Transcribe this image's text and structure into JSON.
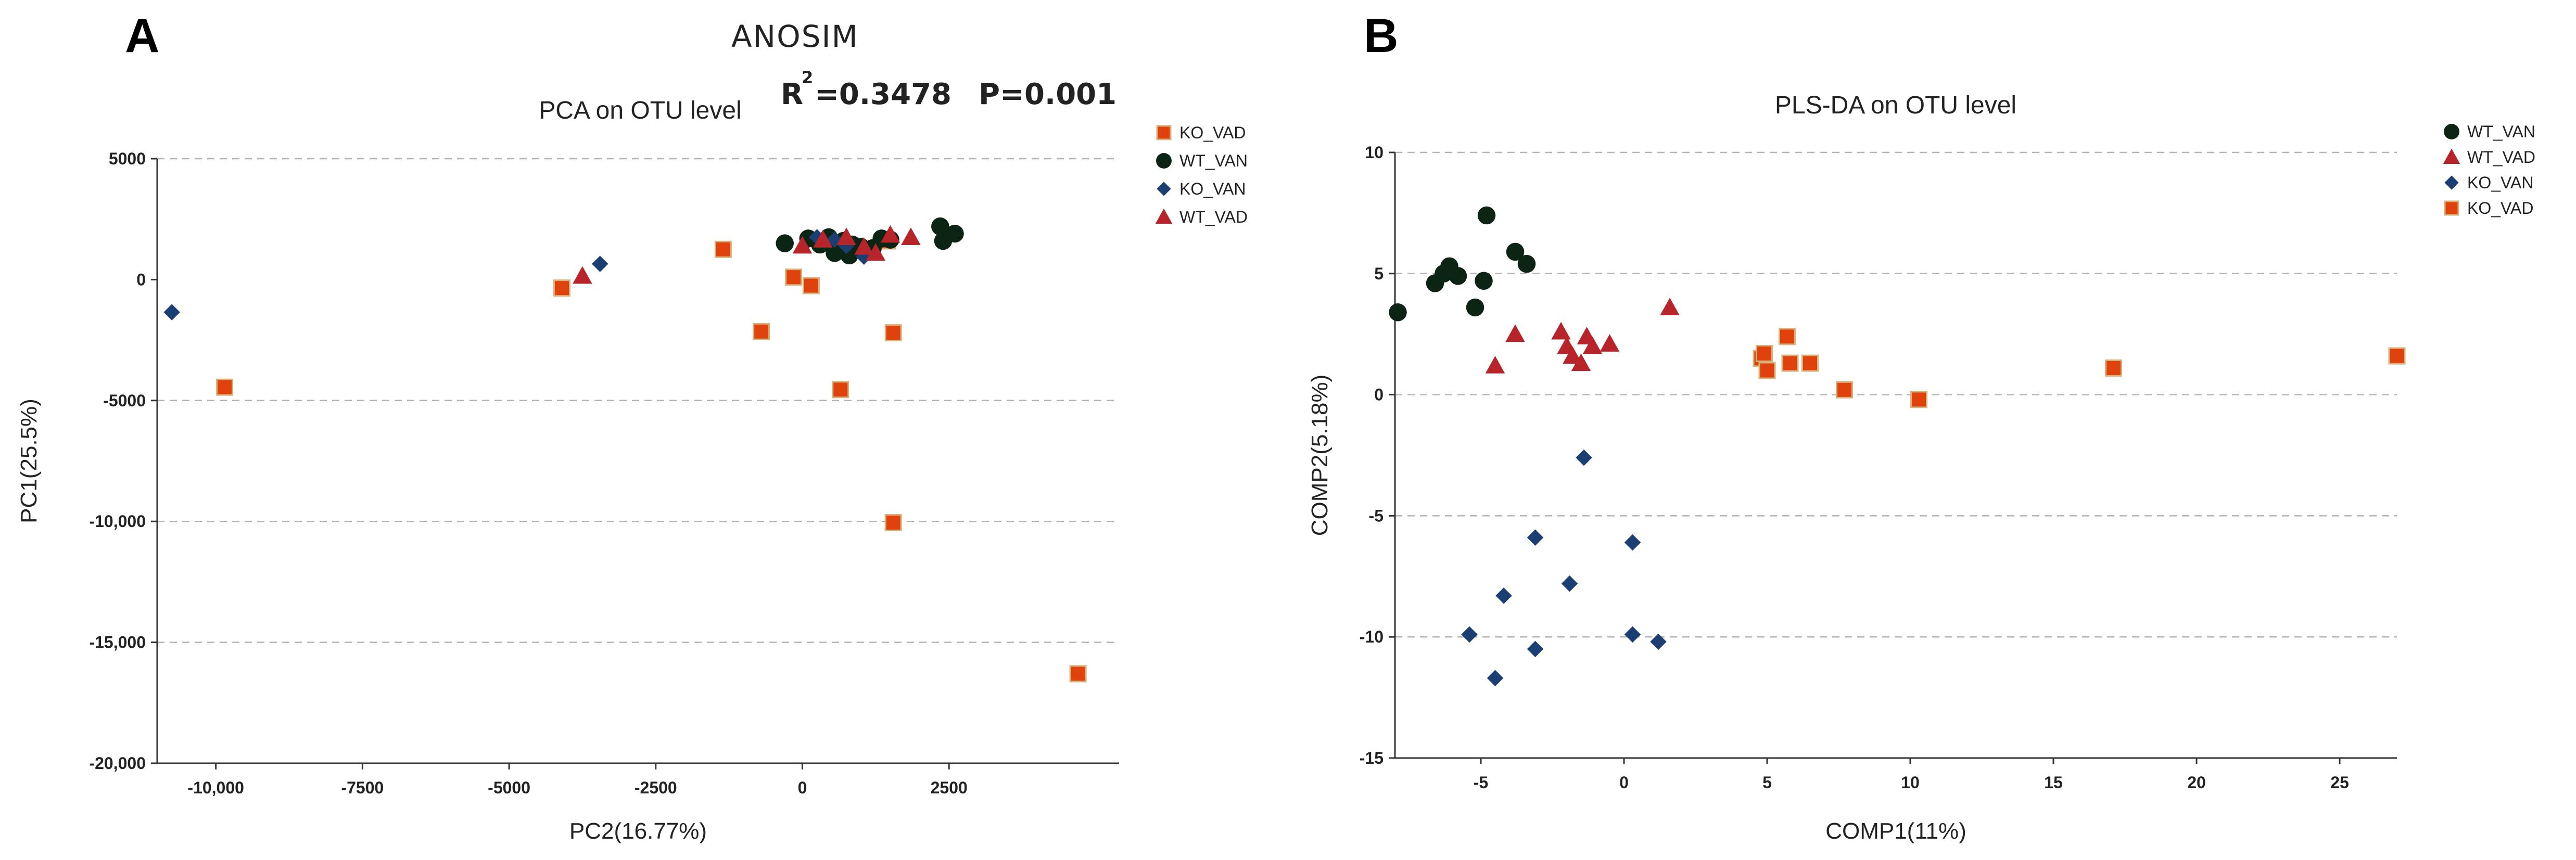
{
  "panels": {
    "a": {
      "letter": "A"
    },
    "b": {
      "letter": "B"
    }
  },
  "anosim": {
    "title": "ANOSIM",
    "r_label": "R",
    "r_sup": "2",
    "r_value": "=0.3478",
    "p_text": "P=0.001"
  },
  "colors": {
    "KO_VAD": "#e0420e",
    "WT_VAN": "#0b2413",
    "KO_VAN": "#1b3f73",
    "WT_VAD": "#b7242a"
  },
  "chart_data": [
    {
      "id": "pca",
      "type": "scatter",
      "title": "PCA on OTU level",
      "xlabel": "PC2(16.77%)",
      "ylabel": "PC1(25.5%)",
      "xlim": [
        -11000,
        5400
      ],
      "ylim": [
        -20000,
        5000
      ],
      "xticks": [
        -10000,
        -7500,
        -5000,
        -2500,
        0,
        2500
      ],
      "xtick_labels": [
        "-10,000",
        "-7500",
        "-5000",
        "-2500",
        "0",
        "2500"
      ],
      "yticks": [
        5000,
        0,
        -5000,
        -10000,
        -15000,
        -20000
      ],
      "ytick_labels": [
        "5000",
        "0",
        "-5000",
        "-10,000",
        "-15,000",
        "-20,000"
      ],
      "grid_y": [
        5000,
        -5000,
        -10000,
        -15000
      ],
      "legend_position": "top-right",
      "legend_order": [
        "KO_VAD",
        "WT_VAN",
        "KO_VAN",
        "WT_VAD"
      ],
      "series": [
        {
          "name": "KO_VAD",
          "marker": "square",
          "points": [
            [
              -9850,
              -4450
            ],
            [
              -4100,
              -350
            ],
            [
              -1350,
              1250
            ],
            [
              -700,
              -2150
            ],
            [
              -150,
              100
            ],
            [
              150,
              -250
            ],
            [
              650,
              -4550
            ],
            [
              1550,
              -2200
            ],
            [
              1550,
              -10050
            ],
            [
              4700,
              -16300
            ],
            [
              1450,
              1600
            ]
          ]
        },
        {
          "name": "WT_VAN",
          "marker": "circle",
          "points": [
            [
              -300,
              1500
            ],
            [
              100,
              1700
            ],
            [
              300,
              1450
            ],
            [
              450,
              1750
            ],
            [
              550,
              1100
            ],
            [
              650,
              1300
            ],
            [
              700,
              1600
            ],
            [
              800,
              1000
            ],
            [
              850,
              1450
            ],
            [
              1000,
              1350
            ],
            [
              1200,
              1300
            ],
            [
              1350,
              1700
            ],
            [
              1500,
              1650
            ],
            [
              2350,
              2200
            ],
            [
              2400,
              1600
            ],
            [
              2600,
              1900
            ]
          ]
        },
        {
          "name": "KO_VAN",
          "marker": "diamond",
          "points": [
            [
              -10750,
              -1350
            ],
            [
              -3450,
              650
            ],
            [
              250,
              1750
            ],
            [
              550,
              1650
            ],
            [
              750,
              1400
            ],
            [
              1050,
              950
            ]
          ]
        },
        {
          "name": "WT_VAD",
          "marker": "triangle",
          "points": [
            [
              -3750,
              150
            ],
            [
              0,
              1400
            ],
            [
              350,
              1650
            ],
            [
              750,
              1750
            ],
            [
              1050,
              1350
            ],
            [
              1250,
              1100
            ],
            [
              1500,
              1850
            ],
            [
              1850,
              1750
            ]
          ]
        }
      ]
    },
    {
      "id": "plsda",
      "type": "scatter",
      "title": "PLS-DA on OTU level",
      "xlabel": "COMP1(11%)",
      "ylabel": "COMP2(5.18%)",
      "xlim": [
        -8,
        27
      ],
      "ylim": [
        -15,
        10
      ],
      "xticks": [
        -5,
        0,
        5,
        10,
        15,
        20,
        25
      ],
      "xtick_labels": [
        "-5",
        "0",
        "5",
        "10",
        "15",
        "20",
        "25"
      ],
      "yticks": [
        10,
        5,
        0,
        -5,
        -10,
        -15
      ],
      "ytick_labels": [
        "10",
        "5",
        "0",
        "-5",
        "-10",
        "-15"
      ],
      "grid_y": [
        10,
        5,
        0,
        -5,
        -10
      ],
      "legend_position": "top-right",
      "legend_order": [
        "WT_VAN",
        "WT_VAD",
        "KO_VAN",
        "KO_VAD"
      ],
      "series": [
        {
          "name": "WT_VAN",
          "marker": "circle",
          "points": [
            [
              -7.9,
              3.4
            ],
            [
              -6.6,
              4.6
            ],
            [
              -6.3,
              5.0
            ],
            [
              -6.1,
              5.3
            ],
            [
              -5.8,
              4.9
            ],
            [
              -5.2,
              3.6
            ],
            [
              -4.9,
              4.7
            ],
            [
              -4.8,
              7.4
            ],
            [
              -3.8,
              5.9
            ],
            [
              -3.4,
              5.4
            ]
          ]
        },
        {
          "name": "WT_VAD",
          "marker": "triangle",
          "points": [
            [
              -4.5,
              1.2
            ],
            [
              -3.8,
              2.5
            ],
            [
              -2.2,
              2.6
            ],
            [
              -2.0,
              2.0
            ],
            [
              -1.8,
              1.6
            ],
            [
              -1.5,
              1.3
            ],
            [
              -1.3,
              2.4
            ],
            [
              -1.1,
              2.0
            ],
            [
              -0.5,
              2.1
            ],
            [
              1.6,
              3.6
            ]
          ]
        },
        {
          "name": "KO_VAN",
          "marker": "diamond",
          "points": [
            [
              -1.4,
              -2.6
            ],
            [
              -3.1,
              -5.9
            ],
            [
              0.3,
              -6.1
            ],
            [
              -4.2,
              -8.3
            ],
            [
              -1.9,
              -7.8
            ],
            [
              -5.4,
              -9.9
            ],
            [
              -3.1,
              -10.5
            ],
            [
              -4.5,
              -11.7
            ],
            [
              0.3,
              -9.9
            ],
            [
              1.2,
              -10.2
            ]
          ]
        },
        {
          "name": "KO_VAD",
          "marker": "square",
          "points": [
            [
              4.8,
              1.5
            ],
            [
              4.9,
              1.7
            ],
            [
              5.0,
              1.0
            ],
            [
              5.7,
              2.4
            ],
            [
              5.8,
              1.3
            ],
            [
              6.5,
              1.3
            ],
            [
              7.7,
              0.2
            ],
            [
              10.3,
              -0.2
            ],
            [
              17.1,
              1.1
            ],
            [
              27.0,
              1.6
            ]
          ]
        }
      ]
    }
  ]
}
